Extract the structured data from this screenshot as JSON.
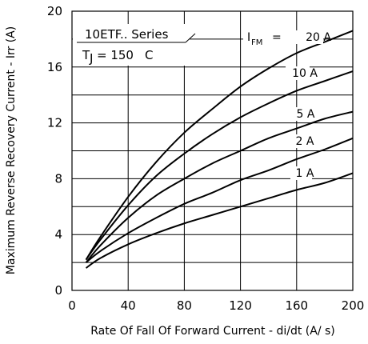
{
  "chart_data": {
    "type": "line",
    "title_lines": [
      "10ETF.. Series",
      "T",
      "J",
      "= 150",
      "C"
    ],
    "xlabel": "Rate Of Fall Of Forward Current - di/dt (A/  s)",
    "ylabel": "Maximum Reverse Recovery Current - Irr (A)",
    "xlim": [
      0,
      200
    ],
    "ylim": [
      0,
      20
    ],
    "x_ticks": [
      0,
      40,
      80,
      120,
      160,
      200
    ],
    "y_ticks": [
      0,
      4,
      8,
      12,
      16,
      20
    ],
    "grid": true,
    "legend_prefix": "I",
    "legend_sub": "FM",
    "series": [
      {
        "name": "20 A",
        "x": [
          10,
          20,
          40,
          60,
          80,
          100,
          120,
          140,
          160,
          180,
          200
        ],
        "y": [
          2.2,
          3.8,
          6.7,
          9.2,
          11.3,
          13.0,
          14.6,
          15.9,
          17.0,
          17.8,
          18.6
        ]
      },
      {
        "name": "10 A",
        "x": [
          10,
          20,
          40,
          60,
          80,
          100,
          120,
          140,
          160,
          180,
          200
        ],
        "y": [
          2.2,
          3.6,
          6.1,
          8.2,
          9.8,
          11.2,
          12.4,
          13.4,
          14.3,
          15.0,
          15.7
        ]
      },
      {
        "name": "5 A",
        "x": [
          10,
          20,
          40,
          60,
          80,
          100,
          120,
          140,
          160,
          180,
          200
        ],
        "y": [
          2.0,
          3.2,
          5.2,
          6.8,
          8.0,
          9.1,
          10.0,
          10.9,
          11.6,
          12.3,
          12.8
        ]
      },
      {
        "name": "2 A",
        "x": [
          10,
          20,
          40,
          60,
          80,
          100,
          120,
          140,
          160,
          180,
          200
        ],
        "y": [
          2.0,
          2.8,
          4.1,
          5.2,
          6.2,
          7.0,
          7.9,
          8.6,
          9.4,
          10.1,
          10.9
        ]
      },
      {
        "name": "1 A",
        "x": [
          10,
          20,
          40,
          60,
          80,
          100,
          120,
          140,
          160,
          180,
          200
        ],
        "y": [
          1.6,
          2.3,
          3.3,
          4.1,
          4.8,
          5.4,
          6.0,
          6.6,
          7.2,
          7.7,
          8.4
        ]
      }
    ]
  }
}
